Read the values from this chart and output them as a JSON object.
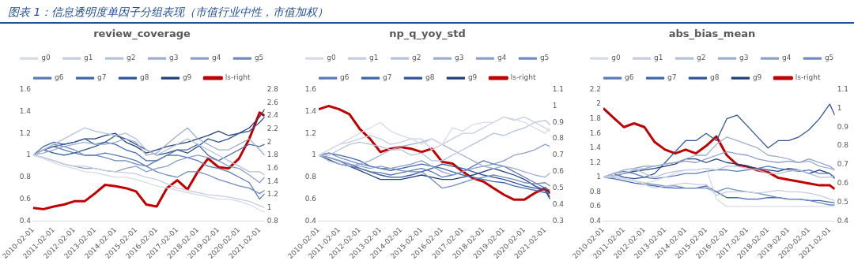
{
  "chart_data": [
    {
      "type": "line",
      "title": "review_coverage",
      "annotations": [
        "图表 1：信息透明度单因子分组表现（市值行业中性，市值加权）"
      ],
      "legend": "top",
      "marker": "none",
      "line_style": "solid",
      "x": [
        "2010-02-01",
        "2010-08-01",
        "2011-02-01",
        "2011-08-01",
        "2012-02-01",
        "2012-08-01",
        "2013-02-01",
        "2013-08-01",
        "2014-02-01",
        "2014-08-01",
        "2015-02-01",
        "2015-08-01",
        "2016-02-01",
        "2016-08-01",
        "2017-02-01",
        "2017-08-01",
        "2018-02-01",
        "2018-08-01",
        "2019-02-01",
        "2019-08-01",
        "2020-02-01",
        "2020-08-01",
        "2021-02-01",
        "2021-05-01"
      ],
      "xlim": [
        "2010-02-01",
        "2021-05-01"
      ],
      "xticks": [
        "2010-02-01",
        "2011-02-01",
        "2012-02-01",
        "2013-02-01",
        "2014-02-01",
        "2015-02-01",
        "2016-02-01",
        "2017-02-01",
        "2018-02-01",
        "2019-02-01",
        "2020-02-01",
        "2021-02-01"
      ],
      "ylim": [
        0.4,
        1.6
      ],
      "yticks": [
        0.4,
        0.6,
        0.8,
        1,
        1.2,
        1.4,
        1.6
      ],
      "y2lim": [
        0.8,
        2.8
      ],
      "y2ticks": [
        0.8,
        1,
        1.2,
        1.4,
        1.6,
        1.8,
        2,
        2.2,
        2.4,
        2.6,
        2.8
      ],
      "series": [
        {
          "name": "g0",
          "color": "#d6dbe6",
          "values": [
            1,
            0.97,
            0.93,
            0.9,
            0.88,
            0.85,
            0.84,
            0.82,
            0.8,
            0.8,
            0.78,
            0.75,
            0.72,
            0.7,
            0.68,
            0.66,
            0.64,
            0.62,
            0.6,
            0.6,
            0.58,
            0.55,
            0.5,
            0.48
          ]
        },
        {
          "name": "g1",
          "color": "#c5cde0",
          "values": [
            1,
            0.98,
            0.95,
            0.92,
            0.9,
            0.9,
            0.88,
            0.86,
            0.85,
            0.84,
            0.83,
            0.8,
            0.78,
            0.74,
            0.7,
            0.68,
            0.66,
            0.64,
            0.63,
            0.62,
            0.6,
            0.58,
            0.54,
            0.52
          ]
        },
        {
          "name": "g2",
          "color": "#b4c2db",
          "values": [
            1,
            1.05,
            1.1,
            1.15,
            1.2,
            1.25,
            1.22,
            1.2,
            1.18,
            1.2,
            1.15,
            1.05,
            1,
            1.05,
            1.1,
            1.15,
            1.1,
            1.05,
            1,
            0.95,
            0.9,
            0.85,
            0.85,
            0.82
          ]
        },
        {
          "name": "g3",
          "color": "#9eafd0",
          "values": [
            1,
            1.02,
            1.05,
            1.08,
            1.1,
            1.12,
            1.1,
            1.1,
            1.12,
            1.15,
            1.12,
            1,
            1.02,
            1.1,
            1.18,
            1.25,
            1.15,
            1.1,
            1.05,
            1.05,
            1.1,
            1.15,
            1.05,
            1
          ]
        },
        {
          "name": "g4",
          "color": "#8aa0c9",
          "values": [
            1,
            0.98,
            0.95,
            0.92,
            0.9,
            0.88,
            0.88,
            0.86,
            0.85,
            0.88,
            0.9,
            0.85,
            0.88,
            0.9,
            0.95,
            0.98,
            1,
            0.98,
            0.95,
            0.9,
            0.88,
            0.82,
            0.75,
            0.8
          ]
        },
        {
          "name": "g5",
          "color": "#6f8cc0",
          "values": [
            1,
            1.05,
            1.1,
            1.08,
            1.05,
            1,
            1,
            0.98,
            0.95,
            0.95,
            0.92,
            0.9,
            0.85,
            0.82,
            0.8,
            0.85,
            0.85,
            0.82,
            0.78,
            0.75,
            0.72,
            0.7,
            0.65,
            0.68
          ]
        },
        {
          "name": "g6",
          "color": "#5a7bb8",
          "values": [
            1,
            1.05,
            1.08,
            1.05,
            1.02,
            1,
            1,
            1.02,
            1,
            0.98,
            0.95,
            0.9,
            0.95,
            1,
            1,
            0.98,
            0.95,
            0.9,
            0.88,
            0.85,
            0.8,
            0.75,
            0.6,
            0.65
          ]
        },
        {
          "name": "g7",
          "color": "#4068a8",
          "values": [
            1,
            1.08,
            1.12,
            1.1,
            1.12,
            1.15,
            1.1,
            1.12,
            1.1,
            1.05,
            1.02,
            0.95,
            0.95,
            1,
            1.05,
            1.05,
            1.1,
            1,
            0.95,
            1,
            1.05,
            1.1,
            1.08,
            1.1
          ]
        },
        {
          "name": "g8",
          "color": "#2f5597",
          "values": [
            1,
            1.05,
            1.02,
            1,
            1.02,
            1.05,
            1.08,
            1.12,
            1.18,
            1.15,
            1.1,
            1.05,
            1,
            1.02,
            1.05,
            1.02,
            1.08,
            1.15,
            1.12,
            1.15,
            1.2,
            1.22,
            1.3,
            1.35
          ]
        },
        {
          "name": "g9",
          "color": "#203f7a",
          "values": [
            1,
            1.05,
            1.08,
            1.1,
            1.12,
            1.15,
            1.15,
            1.18,
            1.2,
            1.12,
            1.08,
            1.02,
            1.05,
            1.08,
            1.1,
            1.12,
            1.15,
            1.18,
            1.22,
            1.18,
            1.2,
            1.25,
            1.35,
            1.42
          ]
        },
        {
          "name": "ls-right",
          "color": "#c00000",
          "axis": "y2",
          "values": [
            1,
            0.98,
            1.02,
            1.05,
            1.1,
            1.1,
            1.22,
            1.35,
            1.33,
            1.3,
            1.25,
            1.05,
            1.02,
            1.3,
            1.42,
            1.28,
            1.55,
            1.75,
            1.62,
            1.6,
            1.75,
            2.05,
            2.45,
            2.4
          ]
        }
      ]
    },
    {
      "type": "line",
      "title": "np_q_yoy_std",
      "legend": "top",
      "marker": "none",
      "line_style": "solid",
      "x": [
        "2010-02-01",
        "2010-08-01",
        "2011-02-01",
        "2011-08-01",
        "2012-02-01",
        "2012-08-01",
        "2013-02-01",
        "2013-08-01",
        "2014-02-01",
        "2014-08-01",
        "2015-02-01",
        "2015-08-01",
        "2016-02-01",
        "2016-08-01",
        "2017-02-01",
        "2017-08-01",
        "2018-02-01",
        "2018-08-01",
        "2019-02-01",
        "2019-08-01",
        "2020-02-01",
        "2020-08-01",
        "2021-02-01",
        "2021-05-01"
      ],
      "xlim": [
        "2010-02-01",
        "2021-05-01"
      ],
      "xticks": [
        "2010-02-01",
        "2011-02-01",
        "2012-02-01",
        "2013-02-01",
        "2014-02-01",
        "2015-02-01",
        "2016-02-01",
        "2017-02-01",
        "2018-02-01",
        "2019-02-01",
        "2020-02-01",
        "2021-02-01"
      ],
      "ylim": [
        0.4,
        1.6
      ],
      "yticks": [
        0.4,
        0.6,
        0.8,
        1,
        1.2,
        1.4,
        1.6
      ],
      "y2lim": [
        0.3,
        1.1
      ],
      "y2ticks": [
        0.3,
        0.4,
        0.5,
        0.6,
        0.7,
        0.8,
        0.9,
        1,
        1.1
      ],
      "series": [
        {
          "name": "g0",
          "color": "#d6dbe6",
          "values": [
            1,
            1.05,
            1.1,
            1.15,
            1.2,
            1.25,
            1.3,
            1.22,
            1.18,
            1.15,
            1.1,
            1.15,
            1.1,
            1.25,
            1.22,
            1.28,
            1.3,
            1.3,
            1.35,
            1.33,
            1.3,
            1.25,
            1.2,
            1.25
          ]
        },
        {
          "name": "g1",
          "color": "#c5cde0",
          "values": [
            1,
            1.05,
            1.1,
            1.12,
            1.15,
            1.18,
            1.15,
            1.1,
            1.12,
            1.15,
            1.15,
            1.05,
            1.1,
            1.15,
            1.2,
            1.2,
            1.25,
            1.3,
            1.35,
            1.32,
            1.35,
            1.3,
            1.25,
            1.22
          ]
        },
        {
          "name": "g2",
          "color": "#b4c2db",
          "values": [
            1,
            1,
            1.05,
            1.1,
            1.12,
            1.1,
            1.08,
            1.05,
            1.05,
            1,
            1.02,
            0.95,
            0.95,
            1,
            1.05,
            1.1,
            1.15,
            1.2,
            1.18,
            1.22,
            1.25,
            1.3,
            1.32,
            1.28
          ]
        },
        {
          "name": "g3",
          "color": "#9eafd0",
          "values": [
            1,
            0.95,
            0.92,
            0.9,
            0.92,
            0.95,
            1,
            1.05,
            1.08,
            1.1,
            1.12,
            1.15,
            1.1,
            1.05,
            1,
            0.95,
            0.9,
            0.88,
            0.9,
            0.88,
            0.85,
            0.82,
            0.8,
            0.84
          ]
        },
        {
          "name": "g4",
          "color": "#8aa0c9",
          "values": [
            1,
            0.98,
            0.95,
            0.92,
            0.9,
            0.88,
            0.9,
            0.88,
            0.9,
            0.92,
            0.95,
            0.9,
            0.85,
            0.82,
            0.85,
            0.88,
            0.9,
            0.92,
            0.95,
            1,
            1.02,
            1.05,
            1.1,
            1.08
          ]
        },
        {
          "name": "g5",
          "color": "#6f8cc0",
          "values": [
            1,
            1.02,
            0.98,
            0.95,
            0.92,
            0.9,
            0.88,
            0.88,
            0.86,
            0.85,
            0.85,
            0.78,
            0.7,
            0.72,
            0.75,
            0.78,
            0.8,
            0.82,
            0.8,
            0.78,
            0.75,
            0.74,
            0.75,
            0.72
          ]
        },
        {
          "name": "g6",
          "color": "#5a7bb8",
          "values": [
            1,
            0.98,
            0.95,
            0.9,
            0.88,
            0.85,
            0.84,
            0.82,
            0.84,
            0.86,
            0.88,
            0.85,
            0.8,
            0.82,
            0.85,
            0.9,
            0.95,
            0.92,
            0.9,
            0.85,
            0.8,
            0.75,
            0.7,
            0.68
          ]
        },
        {
          "name": "g7",
          "color": "#4068a8",
          "values": [
            1,
            1.02,
            1,
            0.98,
            0.95,
            0.9,
            0.88,
            0.86,
            0.88,
            0.9,
            0.92,
            0.9,
            0.88,
            0.85,
            0.82,
            0.8,
            0.78,
            0.76,
            0.75,
            0.72,
            0.7,
            0.68,
            0.66,
            0.65
          ]
        },
        {
          "name": "g8",
          "color": "#2f5597",
          "values": [
            1,
            0.98,
            0.95,
            0.92,
            0.88,
            0.85,
            0.82,
            0.8,
            0.8,
            0.82,
            0.85,
            0.88,
            0.92,
            0.9,
            0.88,
            0.85,
            0.82,
            0.8,
            0.78,
            0.75,
            0.72,
            0.7,
            0.68,
            0.62
          ]
        },
        {
          "name": "g9",
          "color": "#203f7a",
          "values": [
            1,
            0.96,
            0.92,
            0.9,
            0.86,
            0.82,
            0.78,
            0.78,
            0.78,
            0.8,
            0.82,
            0.8,
            0.78,
            0.78,
            0.8,
            0.82,
            0.85,
            0.88,
            0.85,
            0.82,
            0.78,
            0.72,
            0.68,
            0.6
          ]
        },
        {
          "name": "ls-right",
          "color": "#c00000",
          "axis": "y2",
          "values": [
            0.98,
            1,
            0.98,
            0.95,
            0.86,
            0.8,
            0.72,
            0.74,
            0.75,
            0.74,
            0.72,
            0.74,
            0.66,
            0.65,
            0.6,
            0.56,
            0.54,
            0.5,
            0.46,
            0.43,
            0.43,
            0.47,
            0.5,
            0.47
          ]
        }
      ]
    },
    {
      "type": "line",
      "title": "abs_bias_mean",
      "legend": "top",
      "marker": "none",
      "line_style": "solid",
      "x": [
        "2010-02-01",
        "2010-08-01",
        "2011-02-01",
        "2011-08-01",
        "2012-02-01",
        "2012-08-01",
        "2013-02-01",
        "2013-08-01",
        "2014-02-01",
        "2014-08-01",
        "2015-02-01",
        "2015-08-01",
        "2016-02-01",
        "2016-08-01",
        "2017-02-01",
        "2017-08-01",
        "2018-02-01",
        "2018-08-01",
        "2019-02-01",
        "2019-08-01",
        "2020-02-01",
        "2020-08-01",
        "2021-02-01",
        "2021-05-01"
      ],
      "xlim": [
        "2010-02-01",
        "2021-05-01"
      ],
      "xticks": [
        "2010-02-01",
        "2011-02-01",
        "2012-02-01",
        "2013-02-01",
        "2014-02-01",
        "2015-02-01",
        "2016-02-01",
        "2017-02-01",
        "2018-02-01",
        "2019-02-01",
        "2020-02-01",
        "2021-02-01"
      ],
      "ylim": [
        0.4,
        2.2
      ],
      "yticks": [
        0.4,
        0.6,
        0.8,
        1,
        1.2,
        1.4,
        1.6,
        1.8,
        2,
        2.2
      ],
      "y2lim": [
        0.4,
        1.1
      ],
      "y2ticks": [
        0.4,
        0.5,
        0.6,
        0.7,
        0.8,
        0.9,
        1,
        1.1
      ],
      "series": [
        {
          "name": "g0",
          "color": "#d6dbe6",
          "values": [
            1,
            1,
            0.98,
            0.95,
            0.92,
            0.95,
            1,
            1.05,
            1.1,
            1.1,
            1.12,
            0.7,
            0.6,
            0.6,
            0.6,
            0.6,
            0.6,
            0.6,
            0.6,
            0.6,
            0.6,
            0.6,
            0.6,
            0.6
          ]
        },
        {
          "name": "g1",
          "color": "#c5cde0",
          "values": [
            1,
            1.02,
            0.98,
            0.95,
            0.9,
            0.85,
            0.88,
            0.9,
            0.92,
            0.9,
            0.9,
            0.75,
            0.8,
            0.8,
            0.8,
            0.78,
            0.8,
            0.82,
            0.8,
            0.8,
            0.78,
            0.75,
            0.7,
            0.68
          ]
        },
        {
          "name": "g2",
          "color": "#b4c2db",
          "values": [
            1,
            1.05,
            1.1,
            1.12,
            1.05,
            1,
            1.05,
            1.08,
            1.1,
            1.1,
            1.12,
            1.1,
            1.15,
            1.15,
            1.12,
            1.1,
            1.05,
            1.05,
            1.08,
            1.1,
            1.05,
            1,
            1,
            1.02
          ]
        },
        {
          "name": "g3",
          "color": "#9eafd0",
          "values": [
            1,
            1.02,
            1.05,
            1.1,
            1.12,
            1.15,
            1.18,
            1.2,
            1.25,
            1.3,
            1.3,
            1.45,
            1.55,
            1.5,
            1.45,
            1.4,
            1.3,
            1.28,
            1.25,
            1.2,
            1.22,
            1.15,
            1.12,
            1.1
          ]
        },
        {
          "name": "g4",
          "color": "#8aa0c9",
          "values": [
            1,
            1.05,
            1.1,
            1.12,
            1.15,
            1.15,
            1.18,
            1.2,
            1.22,
            1.2,
            1.25,
            1.3,
            1.35,
            1.32,
            1.3,
            1.25,
            1.22,
            1.2,
            1.22,
            1.2,
            1.25,
            1.2,
            1.15,
            1.1
          ]
        },
        {
          "name": "g5",
          "color": "#6f8cc0",
          "values": [
            1,
            1,
            0.98,
            0.95,
            0.92,
            0.9,
            0.88,
            0.88,
            0.85,
            0.85,
            0.85,
            0.8,
            0.85,
            0.82,
            0.8,
            0.78,
            0.75,
            0.72,
            0.7,
            0.7,
            0.68,
            0.65,
            0.62,
            0.62
          ]
        },
        {
          "name": "g6",
          "color": "#5a7bb8",
          "values": [
            1,
            1.05,
            1.08,
            1.05,
            1,
            0.98,
            1,
            1.02,
            1.05,
            1.05,
            1.08,
            1.1,
            1.1,
            1.08,
            1.1,
            1.12,
            1.15,
            1.12,
            1.1,
            1.08,
            1.1,
            1.05,
            1.05,
            1
          ]
        },
        {
          "name": "g7",
          "color": "#4068a8",
          "values": [
            1,
            0.98,
            0.95,
            0.92,
            0.9,
            0.88,
            0.86,
            0.85,
            0.85,
            0.85,
            0.88,
            0.8,
            0.72,
            0.72,
            0.7,
            0.7,
            0.72,
            0.72,
            0.7,
            0.7,
            0.68,
            0.68,
            0.66,
            0.65
          ]
        },
        {
          "name": "g8",
          "color": "#2f5597",
          "values": [
            1,
            1.05,
            1,
            0.98,
            1,
            1.05,
            1.2,
            1.35,
            1.5,
            1.5,
            1.6,
            1.5,
            1.8,
            1.85,
            1.7,
            1.55,
            1.4,
            1.5,
            1.5,
            1.55,
            1.65,
            1.8,
            2,
            1.85
          ]
        },
        {
          "name": "g9",
          "color": "#203f7a",
          "values": [
            1,
            1.02,
            1.05,
            1.08,
            1.1,
            1.12,
            1.15,
            1.18,
            1.25,
            1.25,
            1.2,
            1.25,
            1.2,
            1.18,
            1.15,
            1.12,
            1.1,
            1.08,
            1.12,
            1.1,
            1.05,
            1.1,
            1.05,
            0.98
          ]
        },
        {
          "name": "ls-right",
          "color": "#c00000",
          "axis": "y2",
          "values": [
            1,
            0.95,
            0.9,
            0.92,
            0.9,
            0.82,
            0.78,
            0.76,
            0.78,
            0.76,
            0.8,
            0.85,
            0.75,
            0.7,
            0.69,
            0.67,
            0.66,
            0.63,
            0.62,
            0.61,
            0.6,
            0.59,
            0.59,
            0.57
          ]
        }
      ]
    }
  ]
}
